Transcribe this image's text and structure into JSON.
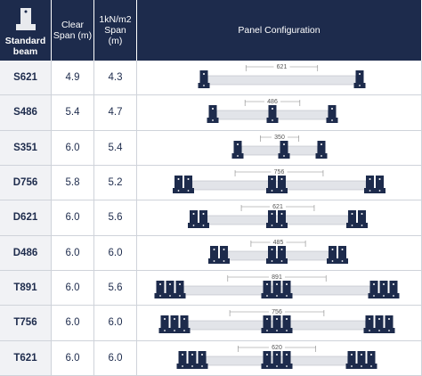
{
  "header": {
    "beam": "Standard beam",
    "clear_span": "Clear Span (m)",
    "kn_span": "1kN/m2 Span (m)",
    "config": "Panel Configuration"
  },
  "rows": [
    {
      "beam": "S621",
      "clear_span": "4.9",
      "kn_span": "4.3",
      "dimension": "621"
    },
    {
      "beam": "S486",
      "clear_span": "5.4",
      "kn_span": "4.7",
      "dimension": "486"
    },
    {
      "beam": "S351",
      "clear_span": "6.0",
      "kn_span": "5.4",
      "dimension": "350"
    },
    {
      "beam": "D756",
      "clear_span": "5.8",
      "kn_span": "5.2",
      "dimension": "756"
    },
    {
      "beam": "D621",
      "clear_span": "6.0",
      "kn_span": "5.6",
      "dimension": "621"
    },
    {
      "beam": "D486",
      "clear_span": "6.0",
      "kn_span": "6.0",
      "dimension": "485"
    },
    {
      "beam": "T891",
      "clear_span": "6.0",
      "kn_span": "5.6",
      "dimension": "891"
    },
    {
      "beam": "T756",
      "clear_span": "6.0",
      "kn_span": "6.0",
      "dimension": "756"
    },
    {
      "beam": "T621",
      "clear_span": "6.0",
      "kn_span": "6.0",
      "dimension": "620"
    }
  ]
}
